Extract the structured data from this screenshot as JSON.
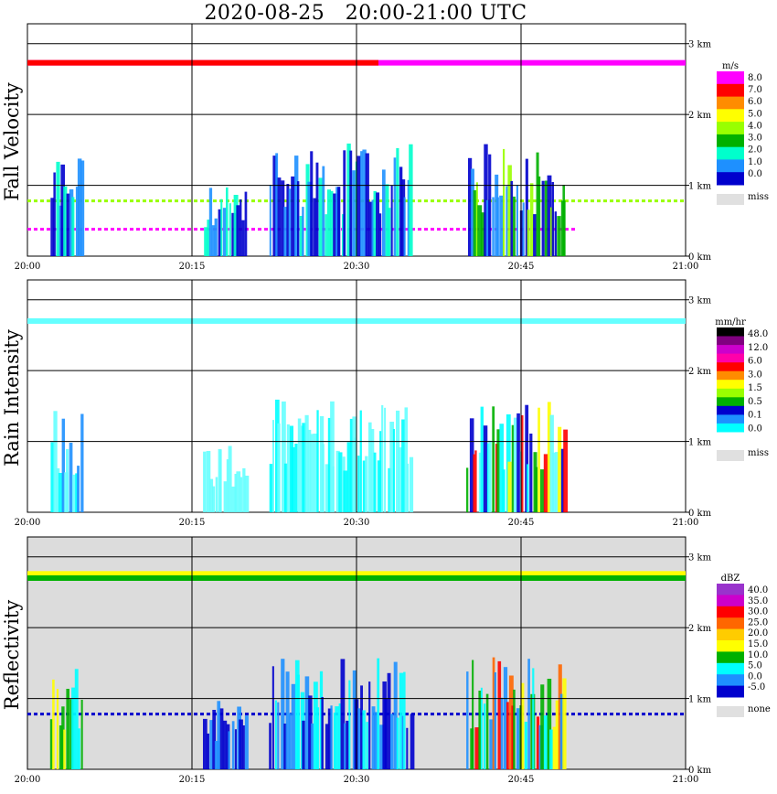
{
  "title": "2020-08-25   20:00-21:00 UTC",
  "chart_data": [
    {
      "type": "heatmap",
      "name": "fall-velocity",
      "ylabel": "Fall Velocity",
      "x_ticks": [
        "20:00",
        "20:15",
        "20:30",
        "20:45",
        "21:00"
      ],
      "y_ticks": [
        "0 km",
        "1 km",
        "2 km",
        "3 km"
      ],
      "xlim_min": [
        0,
        60
      ],
      "ylim_km": [
        0,
        3.1
      ],
      "grid": true,
      "background": "#ffffff",
      "colorbar": {
        "unit": "m/s",
        "labels": [
          "8.0",
          "7.0",
          "6.0",
          "5.0",
          "4.0",
          "3.0",
          "2.0",
          "1.0",
          "0.0"
        ],
        "colors": [
          "#ff00ff",
          "#ff0000",
          "#ff8c00",
          "#ffff00",
          "#99ff00",
          "#00b000",
          "#00ffcc",
          "#1e90ff",
          "#0000cd"
        ],
        "miss_label": "miss",
        "miss_color": "#e0e0e0"
      },
      "layers": [
        {
          "y_km": 2.73,
          "t_range_min": [
            0,
            60
          ],
          "color": "#ff00ff",
          "kind": "band"
        },
        {
          "y_km": 2.73,
          "t_range_min": [
            0,
            32
          ],
          "color": "#ff0000",
          "kind": "band"
        },
        {
          "y_km": 0.78,
          "t_range_min": [
            0,
            60
          ],
          "color": "#99ff00",
          "kind": "dashed"
        },
        {
          "y_km": 0.38,
          "t_range_min": [
            0,
            50
          ],
          "color": "#ff00ff",
          "kind": "dashed"
        }
      ],
      "cells": [
        {
          "t_min": [
            2,
            5
          ],
          "top_km": 1.5,
          "colors": [
            "#1e90ff",
            "#00ffcc",
            "#0000cd"
          ]
        },
        {
          "t_min": [
            16,
            20
          ],
          "top_km": 1.0,
          "colors": [
            "#1e90ff",
            "#00ffcc",
            "#0000cd"
          ]
        },
        {
          "t_min": [
            22,
            35
          ],
          "top_km": 1.6,
          "colors": [
            "#1e90ff",
            "#00ffcc",
            "#0000cd"
          ]
        },
        {
          "t_min": [
            40,
            49
          ],
          "top_km": 1.6,
          "colors": [
            "#1e90ff",
            "#00b000",
            "#99ff00",
            "#0000cd"
          ]
        }
      ]
    },
    {
      "type": "heatmap",
      "name": "rain-intensity",
      "ylabel": "Rain Intensity",
      "x_ticks": [
        "20:00",
        "20:15",
        "20:30",
        "20:45",
        "21:00"
      ],
      "y_ticks": [
        "0 km",
        "1 km",
        "2 km",
        "3 km"
      ],
      "xlim_min": [
        0,
        60
      ],
      "ylim_km": [
        0,
        3.1
      ],
      "grid": true,
      "background": "#ffffff",
      "colorbar": {
        "unit": "mm/hr",
        "labels": [
          "48.0",
          "12.0",
          "6.0",
          "3.0",
          "1.5",
          "0.5",
          "0.1",
          "0.0"
        ],
        "colors": [
          "#000000",
          "#800080",
          "#cc00cc",
          "#ff00aa",
          "#ff0000",
          "#ff8c00",
          "#ffff00",
          "#99ff00",
          "#00b000",
          "#0000cd",
          "#1e90ff",
          "#00ffff",
          "#ffffff"
        ],
        "miss_label": "miss",
        "miss_color": "#e0e0e0"
      },
      "layers": [
        {
          "y_km": 2.7,
          "t_range_min": [
            0,
            60
          ],
          "color": "#66ffff",
          "kind": "band"
        }
      ],
      "cells": [
        {
          "t_min": [
            2,
            5
          ],
          "top_km": 1.5,
          "colors": [
            "#66ffff",
            "#00ffff",
            "#1e90ff"
          ]
        },
        {
          "t_min": [
            16,
            20
          ],
          "top_km": 1.0,
          "colors": [
            "#66ffff"
          ]
        },
        {
          "t_min": [
            22,
            35
          ],
          "top_km": 1.6,
          "colors": [
            "#66ffff",
            "#00ffff"
          ]
        },
        {
          "t_min": [
            40,
            49
          ],
          "top_km": 1.6,
          "colors": [
            "#66ffff",
            "#00ffff",
            "#0000cd",
            "#00b000",
            "#ff0000",
            "#ffff00"
          ]
        }
      ]
    },
    {
      "type": "heatmap",
      "name": "reflectivity",
      "ylabel": "Reflectivity",
      "x_ticks": [
        "20:00",
        "20:15",
        "20:30",
        "20:45",
        "21:00"
      ],
      "y_ticks": [
        "0 km",
        "1 km",
        "2 km",
        "3 km"
      ],
      "xlim_min": [
        0,
        60
      ],
      "ylim_km": [
        0,
        3.1
      ],
      "grid": true,
      "background": "#dcdcdc",
      "colorbar": {
        "unit": "dBZ",
        "labels": [
          "40.0",
          "35.0",
          "30.0",
          "25.0",
          "20.0",
          "15.0",
          "10.0",
          "5.0",
          "0.0",
          "-5.0"
        ],
        "colors": [
          "#9933cc",
          "#cc00cc",
          "#ff0000",
          "#ff6600",
          "#ffcc00",
          "#ffff00",
          "#00b000",
          "#00ffff",
          "#1e90ff",
          "#0000cd"
        ],
        "miss_label": "none",
        "miss_color": "#e0e0e0"
      },
      "layers": [
        {
          "y_km": 2.76,
          "t_range_min": [
            0,
            60
          ],
          "color": "#ffff00",
          "kind": "band"
        },
        {
          "y_km": 2.7,
          "t_range_min": [
            0,
            60
          ],
          "color": "#00b000",
          "kind": "band"
        },
        {
          "y_km": 0.78,
          "t_range_min": [
            0,
            60
          ],
          "color": "#0000cd",
          "kind": "dashed"
        }
      ],
      "cells": [
        {
          "t_min": [
            2,
            5
          ],
          "top_km": 1.5,
          "colors": [
            "#1e90ff",
            "#00ffff",
            "#00b000",
            "#ffff00"
          ]
        },
        {
          "t_min": [
            16,
            20
          ],
          "top_km": 1.0,
          "colors": [
            "#1e90ff",
            "#0000cd"
          ]
        },
        {
          "t_min": [
            22,
            35
          ],
          "top_km": 1.6,
          "colors": [
            "#1e90ff",
            "#00ffff",
            "#0000cd"
          ]
        },
        {
          "t_min": [
            40,
            49
          ],
          "top_km": 1.6,
          "colors": [
            "#1e90ff",
            "#00ffff",
            "#00b000",
            "#ffff00",
            "#ff6600",
            "#ff0000"
          ]
        }
      ]
    }
  ]
}
